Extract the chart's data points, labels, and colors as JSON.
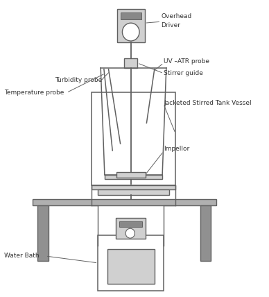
{
  "bg_color": "#ffffff",
  "line_color": "#606060",
  "fill_light": "#d0d0d0",
  "fill_mid": "#b0b0b0",
  "fill_dark": "#909090",
  "labels": {
    "overhead": "Overhead",
    "driver": "Driver",
    "turbidity": "Turbidity probe",
    "temperature": "Temperature probe",
    "uv_atr": "UV –ATR probe",
    "stirrer_guide": "Stirrer guide",
    "jacketed": "Jacketed Stirred Tank Vessel",
    "impellor": "Impellor",
    "water_bath": "Water Bath"
  }
}
